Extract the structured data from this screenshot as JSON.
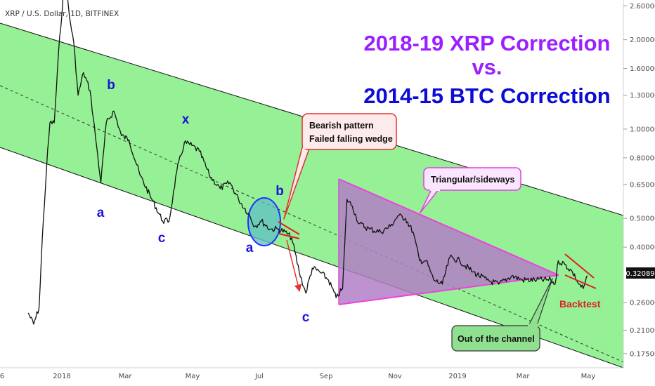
{
  "symbol_label": "XRP / U.S. Dollar, 1D, BITFINEX",
  "colors": {
    "channel_fill": "#96f096",
    "channel_line": "#111111",
    "midline": "#333333",
    "triangle_fill": "#b27fc6",
    "triangle_edge": "#f040e0",
    "price_line": "#111111",
    "wave_label": "#1a14d8",
    "title_line1": "#9b1fff",
    "title_line3": "#0c0cd6",
    "callout_red_bg": "#fdeaea",
    "callout_red_border": "#e03030",
    "callout_pink_bg": "#fbe6ff",
    "callout_pink_border": "#e040e0",
    "callout_green_bg": "#8fe08f",
    "callout_green_border": "#333333",
    "backtest": "#e02020",
    "current_price_bg": "#111111"
  },
  "title": {
    "line1": "2018-19 XRP Correction",
    "line2": "vs.",
    "line3": "2014-15 BTC Correction"
  },
  "callouts": {
    "bearish": {
      "line1": "Bearish pattern",
      "line2": "Failed falling wedge"
    },
    "triangular": "Triangular/sideways",
    "out_of_channel": "Out of the channel",
    "backtest": "Backtest"
  },
  "wave_labels": {
    "b1": "b",
    "a1": "a",
    "x": "x",
    "c1": "c",
    "b2": "b",
    "a2": "a",
    "c2": "c"
  },
  "current_price_label": "0.32089",
  "chart_data": {
    "type": "line",
    "scale": "log",
    "y_ticks": [
      "2.60000",
      "2.00000",
      "1.60000",
      "1.30000",
      "1.00000",
      "0.80000",
      "0.65000",
      "0.50000",
      "0.40000",
      "0.32089",
      "0.26000",
      "0.21000",
      "0.17500"
    ],
    "x_ticks": [
      "6",
      "2018",
      "Mar",
      "May",
      "Jul",
      "Sep",
      "Nov",
      "2019",
      "Mar",
      "May"
    ],
    "series": [
      {
        "values": [
          [
            "2017-12-01",
            0.24
          ],
          [
            "2017-12-06",
            0.22
          ],
          [
            "2017-12-11",
            0.25
          ],
          [
            "2017-12-14",
            0.43
          ],
          [
            "2017-12-18",
            0.75
          ],
          [
            "2017-12-21",
            1.05
          ],
          [
            "2017-12-25",
            1.05
          ],
          [
            "2017-12-30",
            2.05
          ],
          [
            "2018-01-04",
            3.25
          ],
          [
            "2018-01-08",
            2.4
          ],
          [
            "2018-01-12",
            1.95
          ],
          [
            "2018-01-16",
            1.3
          ],
          [
            "2018-01-21",
            1.55
          ],
          [
            "2018-01-27",
            1.35
          ],
          [
            "2018-02-02",
            0.88
          ],
          [
            "2018-02-06",
            0.66
          ],
          [
            "2018-02-11",
            1.05
          ],
          [
            "2018-02-18",
            1.15
          ],
          [
            "2018-02-25",
            0.95
          ],
          [
            "2018-03-04",
            0.92
          ],
          [
            "2018-03-14",
            0.7
          ],
          [
            "2018-03-25",
            0.58
          ],
          [
            "2018-04-04",
            0.49
          ],
          [
            "2018-04-10",
            0.49
          ],
          [
            "2018-04-17",
            0.72
          ],
          [
            "2018-04-24",
            0.9
          ],
          [
            "2018-05-01",
            0.88
          ],
          [
            "2018-05-08",
            0.84
          ],
          [
            "2018-05-17",
            0.7
          ],
          [
            "2018-05-27",
            0.63
          ],
          [
            "2018-06-05",
            0.66
          ],
          [
            "2018-06-13",
            0.58
          ],
          [
            "2018-06-22",
            0.52
          ],
          [
            "2018-06-28",
            0.47
          ],
          [
            "2018-07-04",
            0.49
          ],
          [
            "2018-07-12",
            0.46
          ],
          [
            "2018-07-20",
            0.46
          ],
          [
            "2018-07-26",
            0.45
          ],
          [
            "2018-08-01",
            0.43
          ],
          [
            "2018-08-08",
            0.33
          ],
          [
            "2018-08-14",
            0.28
          ],
          [
            "2018-08-20",
            0.34
          ],
          [
            "2018-08-27",
            0.33
          ],
          [
            "2018-09-04",
            0.31
          ],
          [
            "2018-09-11",
            0.27
          ],
          [
            "2018-09-17",
            0.29
          ],
          [
            "2018-09-21",
            0.58
          ],
          [
            "2018-09-26",
            0.55
          ],
          [
            "2018-10-02",
            0.48
          ],
          [
            "2018-10-12",
            0.46
          ],
          [
            "2018-10-22",
            0.45
          ],
          [
            "2018-10-31",
            0.47
          ],
          [
            "2018-11-07",
            0.51
          ],
          [
            "2018-11-14",
            0.5
          ],
          [
            "2018-11-21",
            0.45
          ],
          [
            "2018-11-27",
            0.36
          ],
          [
            "2018-12-03",
            0.36
          ],
          [
            "2018-12-10",
            0.31
          ],
          [
            "2018-12-18",
            0.3
          ],
          [
            "2018-12-25",
            0.37
          ],
          [
            "2019-01-03",
            0.36
          ],
          [
            "2019-01-15",
            0.33
          ],
          [
            "2019-01-28",
            0.31
          ],
          [
            "2019-02-08",
            0.3
          ],
          [
            "2019-02-20",
            0.32
          ],
          [
            "2019-03-02",
            0.31
          ],
          [
            "2019-03-15",
            0.31
          ],
          [
            "2019-03-28",
            0.31
          ],
          [
            "2019-04-01",
            0.3
          ],
          [
            "2019-04-04",
            0.36
          ],
          [
            "2019-04-10",
            0.35
          ],
          [
            "2019-04-17",
            0.33
          ],
          [
            "2019-04-23",
            0.3
          ],
          [
            "2019-04-27",
            0.29
          ],
          [
            "2019-05-01",
            0.32
          ]
        ]
      }
    ]
  }
}
